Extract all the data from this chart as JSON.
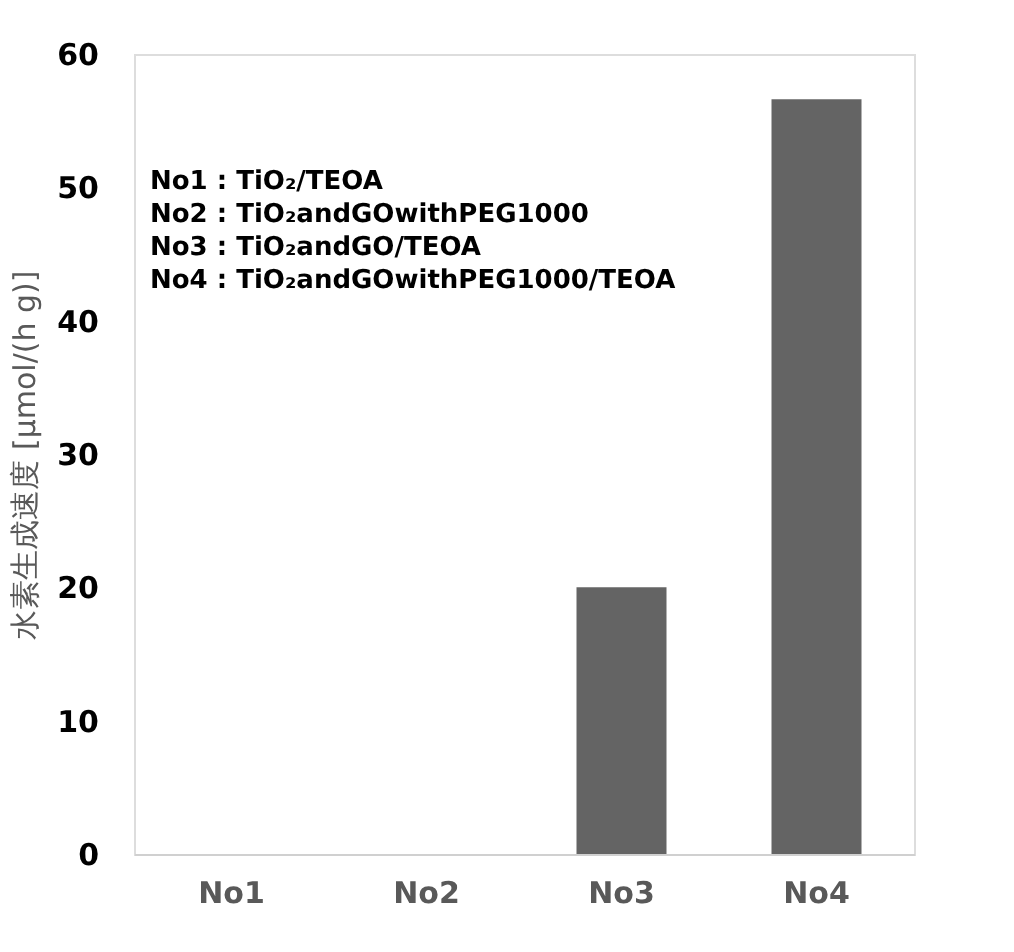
{
  "chart_data": {
    "type": "bar",
    "categories": [
      "No1",
      "No2",
      "No3",
      "No4"
    ],
    "values": [
      0,
      0,
      20,
      56.6
    ],
    "color": "#646464",
    "ylabel": "水素生成速度 [μmol/(h g)]",
    "ylim": [
      0,
      60
    ],
    "yticks": [
      0,
      10,
      20,
      30,
      40,
      50,
      60
    ],
    "grid": false,
    "annotations": [
      "No1 : TiO₂/TEOA",
      "No2 : TiO₂andGOwithPEG1000",
      "No3 : TiO₂andGO/TEOA",
      "No4 : TiO₂andGOwithPEG1000/TEOA"
    ]
  }
}
